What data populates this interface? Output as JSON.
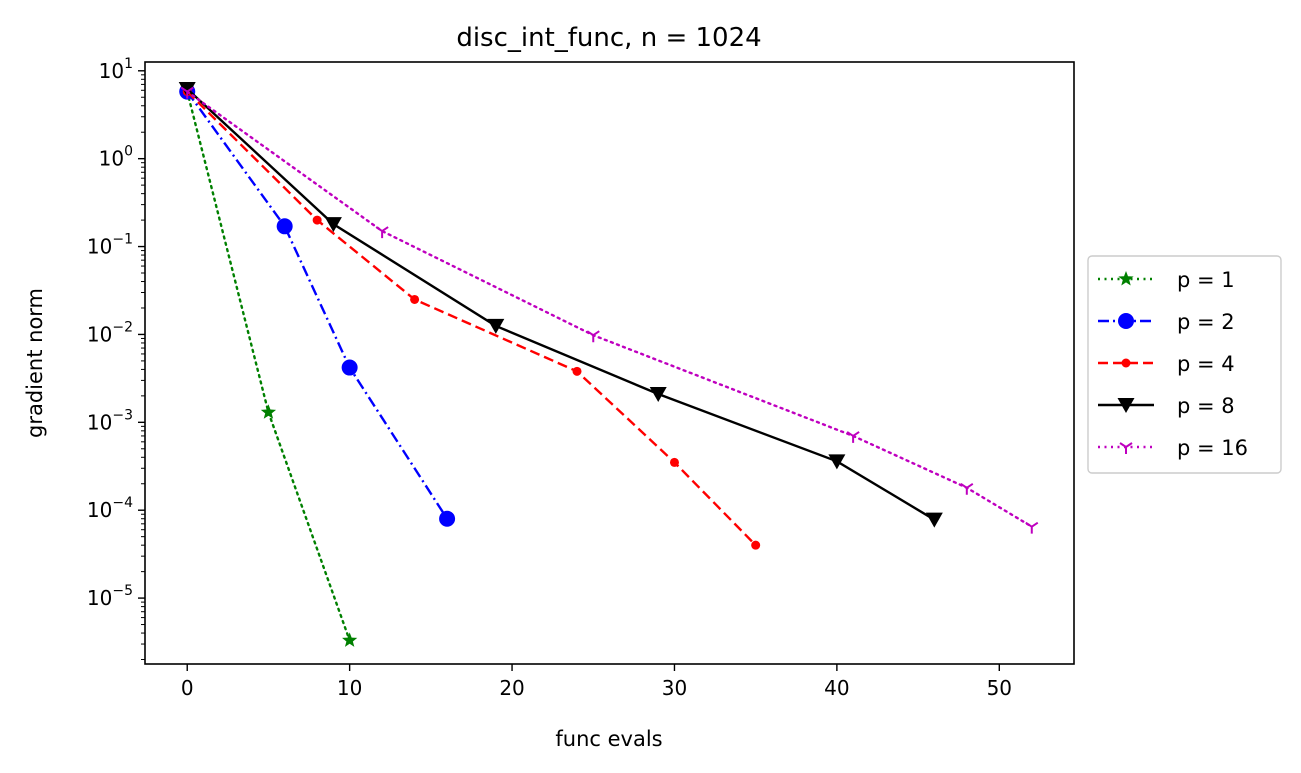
{
  "chart_data": {
    "type": "line",
    "title": "disc_int_func, n = 1024",
    "xlabel": "func evals",
    "ylabel": "gradient norm",
    "xlim": [
      -2.6,
      54.6
    ],
    "ylim_log10": [
      -5.75,
      1.1
    ],
    "yscale": "log",
    "grid": false,
    "legend_position": "right-outside",
    "x_ticks": [
      0,
      10,
      20,
      30,
      40,
      50
    ],
    "x_tick_labels": [
      "0",
      "10",
      "20",
      "30",
      "40",
      "50"
    ],
    "y_ticks_exp": [
      1,
      0,
      -1,
      -2,
      -3,
      -4,
      -5
    ],
    "y_tick_labels": [
      {
        "base": "10",
        "exp": "1"
      },
      {
        "base": "10",
        "exp": "0"
      },
      {
        "base": "10",
        "exp": "−1"
      },
      {
        "base": "10",
        "exp": "−2"
      },
      {
        "base": "10",
        "exp": "−3"
      },
      {
        "base": "10",
        "exp": "−4"
      },
      {
        "base": "10",
        "exp": "−5"
      }
    ],
    "series": [
      {
        "name": "p = 1",
        "color": "#008000",
        "linestyle": "dotted",
        "marker": "star",
        "x": [
          0,
          5,
          10
        ],
        "y": [
          5.8,
          0.0013,
          3.3e-06
        ]
      },
      {
        "name": "p = 2",
        "color": "#0000ff",
        "linestyle": "dashdot",
        "marker": "circle",
        "x": [
          0,
          6,
          10,
          16
        ],
        "y": [
          5.8,
          0.17,
          0.0042,
          8e-05
        ]
      },
      {
        "name": "p = 4",
        "color": "#ff0000",
        "linestyle": "dashed",
        "marker": "point",
        "x": [
          0,
          8,
          14,
          24,
          30,
          35
        ],
        "y": [
          5.8,
          0.2,
          0.025,
          0.0038,
          0.00035,
          4e-05
        ]
      },
      {
        "name": "p = 8",
        "color": "#000000",
        "linestyle": "solid",
        "marker": "triangle-down",
        "x": [
          0,
          9,
          19,
          29,
          40,
          46
        ],
        "y": [
          6.2,
          0.18,
          0.0125,
          0.0021,
          0.00036,
          7.8e-05
        ]
      },
      {
        "name": "p = 16",
        "color": "#bf00bf",
        "linestyle": "dotted",
        "marker": "tri-down",
        "x": [
          0,
          12,
          25,
          41,
          48,
          52
        ],
        "y": [
          5.8,
          0.15,
          0.0098,
          0.0007,
          0.00018,
          6.5e-05
        ]
      }
    ]
  }
}
